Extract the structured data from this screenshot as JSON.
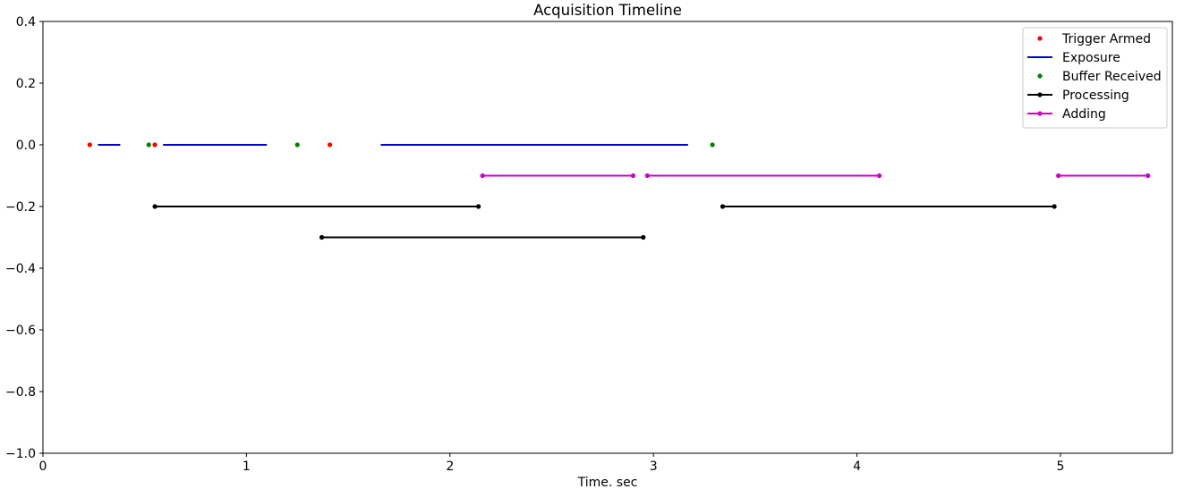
{
  "chart_data": {
    "type": "line",
    "title": "Acquisition Timeline",
    "xlabel": "Time. sec",
    "ylabel": "",
    "xlim": [
      0,
      5.55
    ],
    "ylim": [
      -1.0,
      0.4
    ],
    "xticks": [
      0,
      1,
      2,
      3,
      4,
      5
    ],
    "xtick_labels": [
      "0",
      "1",
      "2",
      "3",
      "4",
      "5"
    ],
    "yticks": [
      0.4,
      0.2,
      0.0,
      -0.2,
      -0.4,
      -0.6,
      -0.8,
      -1.0
    ],
    "ytick_labels": [
      "0.4",
      "0.2",
      "0.0",
      "−0.2",
      "−0.4",
      "−0.6",
      "−0.8",
      "−1.0"
    ],
    "grid": false,
    "legend_position": "top-right",
    "series": [
      {
        "name": "Trigger Armed",
        "style": "points",
        "color": "#ff0000",
        "points": [
          [
            0.23,
            0.0
          ],
          [
            0.55,
            0.0
          ],
          [
            1.41,
            0.0
          ]
        ]
      },
      {
        "name": "Exposure",
        "style": "segments",
        "color": "#0000cc",
        "markers": false,
        "segments": [
          [
            [
              0.27,
              0.0
            ],
            [
              0.38,
              0.0
            ]
          ],
          [
            [
              0.59,
              0.0
            ],
            [
              1.1,
              0.0
            ]
          ],
          [
            [
              1.66,
              0.0
            ],
            [
              3.17,
              0.0
            ]
          ]
        ]
      },
      {
        "name": "Buffer Received",
        "style": "points",
        "color": "#008000",
        "points": [
          [
            0.52,
            0.0
          ],
          [
            1.25,
            0.0
          ],
          [
            3.29,
            0.0
          ]
        ]
      },
      {
        "name": "Processing",
        "style": "segments",
        "color": "#000000",
        "markers": true,
        "segments": [
          [
            [
              0.55,
              -0.2
            ],
            [
              2.14,
              -0.2
            ]
          ],
          [
            [
              1.37,
              -0.3
            ],
            [
              2.95,
              -0.3
            ]
          ],
          [
            [
              3.34,
              -0.2
            ],
            [
              4.97,
              -0.2
            ]
          ]
        ]
      },
      {
        "name": "Adding",
        "style": "segments",
        "color": "#cc00cc",
        "markers": true,
        "segments": [
          [
            [
              2.16,
              -0.1
            ],
            [
              2.9,
              -0.1
            ]
          ],
          [
            [
              2.97,
              -0.1
            ],
            [
              4.11,
              -0.1
            ]
          ],
          [
            [
              4.99,
              -0.1
            ],
            [
              5.43,
              -0.1
            ]
          ]
        ]
      }
    ]
  }
}
